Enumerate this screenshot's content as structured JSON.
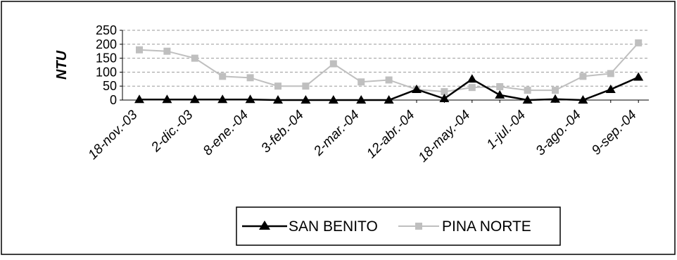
{
  "chart_data": {
    "type": "line",
    "title": "",
    "xlabel": "",
    "ylabel": "NTU",
    "ylim": [
      0,
      250
    ],
    "y_ticks": [
      "0",
      "50",
      "100",
      "150",
      "200",
      "250"
    ],
    "grid": true,
    "legend_position": "bottom",
    "x_tick_labels": [
      "18-nov.-03",
      "2-dic.-03",
      "8-ene.-04",
      "3-feb.-04",
      "2-mar.-04",
      "12-abr.-04",
      "18-may.-04",
      "1-jul.-04",
      "3-ago.-04",
      "9-sep.-04"
    ],
    "series": [
      {
        "name": "SAN BENITO",
        "color": "#000000",
        "marker": "triangle",
        "values": [
          2,
          2,
          2,
          2,
          2,
          0,
          0,
          0,
          0,
          0,
          38,
          5,
          75,
          18,
          0,
          3,
          0,
          38,
          82
        ]
      },
      {
        "name": "PINA NORTE",
        "color": "#bfbfbf",
        "marker": "square",
        "values": [
          180,
          175,
          150,
          85,
          80,
          50,
          50,
          130,
          65,
          72,
          38,
          30,
          45,
          48,
          35,
          35,
          85,
          95,
          205
        ]
      }
    ]
  }
}
